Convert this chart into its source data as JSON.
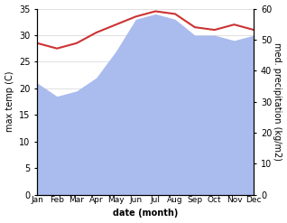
{
  "months": [
    "Jan",
    "Feb",
    "Mar",
    "Apr",
    "May",
    "Jun",
    "Jul",
    "Aug",
    "Sep",
    "Oct",
    "Nov",
    "Dec"
  ],
  "x": [
    0,
    1,
    2,
    3,
    4,
    5,
    6,
    7,
    8,
    9,
    10,
    11
  ],
  "temperature": [
    28.5,
    27.5,
    28.5,
    30.5,
    32.0,
    33.5,
    34.5,
    34.0,
    31.5,
    31.0,
    32.0,
    31.0
  ],
  "precipitation_left": [
    21.0,
    18.5,
    19.5,
    22.0,
    27.0,
    33.0,
    34.0,
    33.0,
    30.0,
    30.0,
    29.0,
    30.0
  ],
  "temp_color": "#cc3333",
  "precip_color": "#aabbee",
  "left_ylim": [
    0,
    35
  ],
  "right_ylim": [
    0,
    60
  ],
  "left_yticks": [
    0,
    5,
    10,
    15,
    20,
    25,
    30,
    35
  ],
  "right_yticks": [
    0,
    10,
    20,
    30,
    40,
    50,
    60
  ],
  "ylabel_left": "max temp (C)",
  "ylabel_right": "med. precipitation (kg/m2)",
  "xlabel": "date (month)",
  "fig_width": 3.18,
  "fig_height": 2.47,
  "dpi": 100
}
